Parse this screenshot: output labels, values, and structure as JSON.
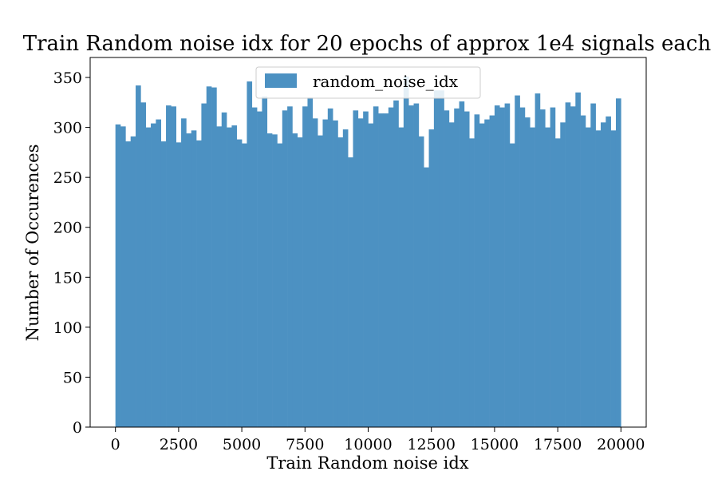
{
  "chart_data": {
    "type": "bar",
    "title": "Train Random noise idx for 20 epochs of approx 1e4 signals each",
    "xlabel": "Train Random noise idx",
    "ylabel": "Number of Occurences",
    "legend": {
      "label": "random_noise_idx",
      "placement": "upper center"
    },
    "color": "#4c91c2",
    "grid": false,
    "xlim": [
      -1000,
      21000
    ],
    "ylim": [
      0,
      370
    ],
    "xticks": [
      0,
      2500,
      5000,
      7500,
      10000,
      12500,
      15000,
      17500,
      20000
    ],
    "xtick_labels": [
      "0",
      "2500",
      "5000",
      "7500",
      "10000",
      "12500",
      "15000",
      "17500",
      "20000"
    ],
    "yticks": [
      0,
      50,
      100,
      150,
      200,
      250,
      300,
      350
    ],
    "ytick_labels": [
      "0",
      "50",
      "100",
      "150",
      "200",
      "250",
      "300",
      "350"
    ],
    "bin_start": 0,
    "bin_width": 200,
    "values": [
      303,
      301,
      286,
      291,
      342,
      325,
      300,
      304,
      308,
      286,
      322,
      321,
      285,
      309,
      294,
      297,
      287,
      324,
      341,
      340,
      301,
      315,
      300,
      302,
      288,
      284,
      346,
      320,
      316,
      331,
      294,
      293,
      284,
      317,
      321,
      294,
      290,
      321,
      330,
      309,
      292,
      308,
      319,
      307,
      290,
      298,
      270,
      317,
      309,
      316,
      304,
      321,
      314,
      314,
      320,
      327,
      300,
      351,
      322,
      324,
      291,
      260,
      298,
      337,
      337,
      317,
      305,
      319,
      326,
      316,
      289,
      313,
      304,
      308,
      312,
      322,
      320,
      324,
      284,
      332,
      320,
      310,
      300,
      334,
      318,
      300,
      320,
      289,
      305,
      325,
      321,
      335,
      312,
      300,
      324,
      297,
      305,
      311,
      297,
      329
    ]
  }
}
